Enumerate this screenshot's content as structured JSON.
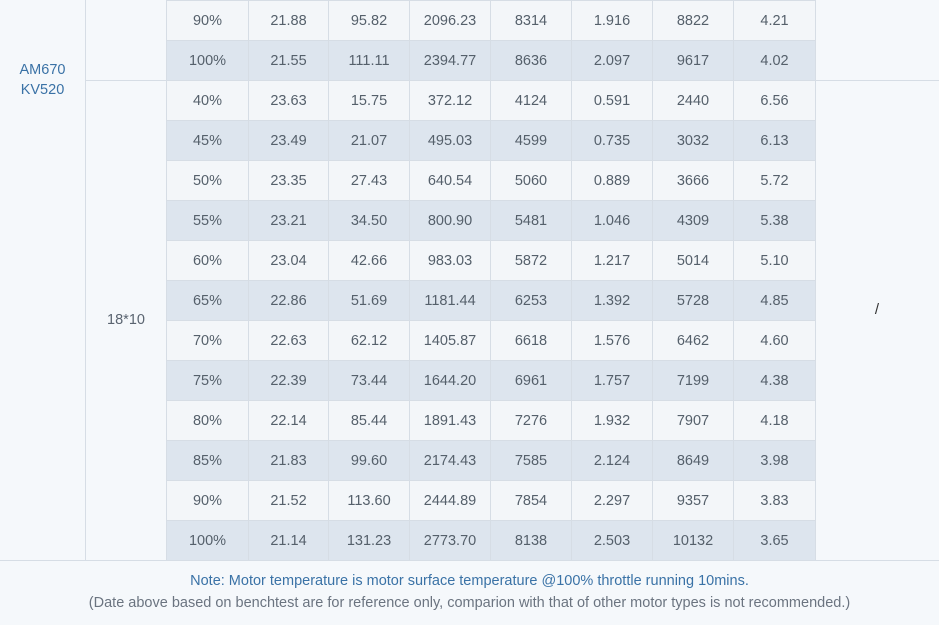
{
  "motor": {
    "line1": "AM670",
    "line2": "KV520"
  },
  "prop": "18*10",
  "right_cell": "/",
  "rows_prev": [
    [
      "90%",
      "21.88",
      "95.82",
      "2096.23",
      "8314",
      "1.916",
      "8822",
      "4.21"
    ],
    [
      "100%",
      "21.55",
      "111.11",
      "2394.77",
      "8636",
      "2.097",
      "9617",
      "4.02"
    ]
  ],
  "rows": [
    [
      "40%",
      "23.63",
      "15.75",
      "372.12",
      "4124",
      "0.591",
      "2440",
      "6.56"
    ],
    [
      "45%",
      "23.49",
      "21.07",
      "495.03",
      "4599",
      "0.735",
      "3032",
      "6.13"
    ],
    [
      "50%",
      "23.35",
      "27.43",
      "640.54",
      "5060",
      "0.889",
      "3666",
      "5.72"
    ],
    [
      "55%",
      "23.21",
      "34.50",
      "800.90",
      "5481",
      "1.046",
      "4309",
      "5.38"
    ],
    [
      "60%",
      "23.04",
      "42.66",
      "983.03",
      "5872",
      "1.217",
      "5014",
      "5.10"
    ],
    [
      "65%",
      "22.86",
      "51.69",
      "1181.44",
      "6253",
      "1.392",
      "5728",
      "4.85"
    ],
    [
      "70%",
      "22.63",
      "62.12",
      "1405.87",
      "6618",
      "1.576",
      "6462",
      "4.60"
    ],
    [
      "75%",
      "22.39",
      "73.44",
      "1644.20",
      "6961",
      "1.757",
      "7199",
      "4.38"
    ],
    [
      "80%",
      "22.14",
      "85.44",
      "1891.43",
      "7276",
      "1.932",
      "7907",
      "4.18"
    ],
    [
      "85%",
      "21.83",
      "99.60",
      "2174.43",
      "7585",
      "2.124",
      "8649",
      "3.98"
    ],
    [
      "90%",
      "21.52",
      "113.60",
      "2444.89",
      "7854",
      "2.297",
      "9357",
      "3.83"
    ],
    [
      "100%",
      "21.14",
      "131.23",
      "2773.70",
      "8138",
      "2.503",
      "10132",
      "3.65"
    ]
  ],
  "note": "Note: Motor temperature is motor surface temperature @100% throttle running 10mins.",
  "disclaimer": "(Date above based on benchtest are for reference only, comparion with that of other motor types is not recommended.)"
}
